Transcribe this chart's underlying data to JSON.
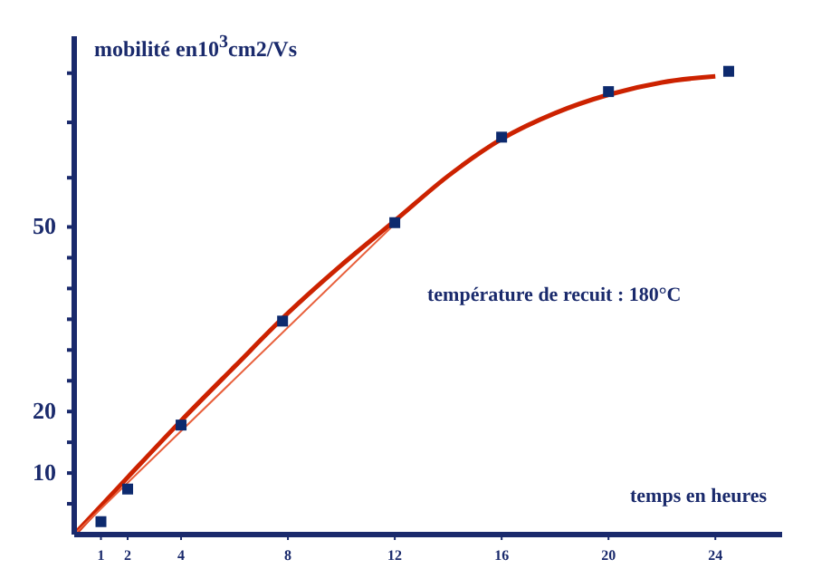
{
  "chart_data": {
    "type": "scatter",
    "ylabel": "mobilité en10$^{3}$cm2/Vs",
    "xlabel": "temps en heures",
    "annotations": [
      "température de recuit : 180°C"
    ],
    "xlim": [
      0,
      26.5
    ],
    "xticks": [
      1,
      2,
      4,
      8,
      12,
      16,
      20,
      24
    ],
    "ylim": [
      0,
      81
    ],
    "yticks": [
      {
        "value": 5,
        "label": null
      },
      10,
      {
        "value": 15,
        "label": null
      },
      20,
      {
        "value": 25,
        "label": null
      },
      {
        "value": 30,
        "label": null
      },
      {
        "value": 35,
        "label": null
      },
      {
        "value": 40,
        "label": null
      },
      {
        "value": 45,
        "label": null
      },
      50,
      {
        "value": 58,
        "label": null
      },
      {
        "value": 67,
        "label": null
      },
      {
        "value": 75,
        "label": null
      }
    ],
    "grid": false,
    "series": [
      {
        "type": "line",
        "color": "#cc2200",
        "marker": "none",
        "x": [
          0,
          2,
          4,
          6,
          8,
          10,
          12,
          14,
          16,
          18,
          20,
          22,
          24
        ],
        "values": [
          0,
          9.3,
          18.5,
          27.3,
          36,
          43.8,
          51,
          58.3,
          64.3,
          68.5,
          71.5,
          73.5,
          74.5
        ]
      },
      {
        "type": "line",
        "color": "#e8603c",
        "marker": "none",
        "x": [
          0,
          12
        ],
        "values": [
          0,
          50.5
        ]
      },
      {
        "color": "#0d2a6e",
        "marker": "square",
        "x": [
          1,
          2,
          4,
          7.8,
          12,
          16,
          20,
          24.5
        ],
        "values": [
          2.1,
          7.4,
          17.8,
          34.7,
          50.7,
          64.6,
          72,
          75.3
        ]
      }
    ]
  }
}
